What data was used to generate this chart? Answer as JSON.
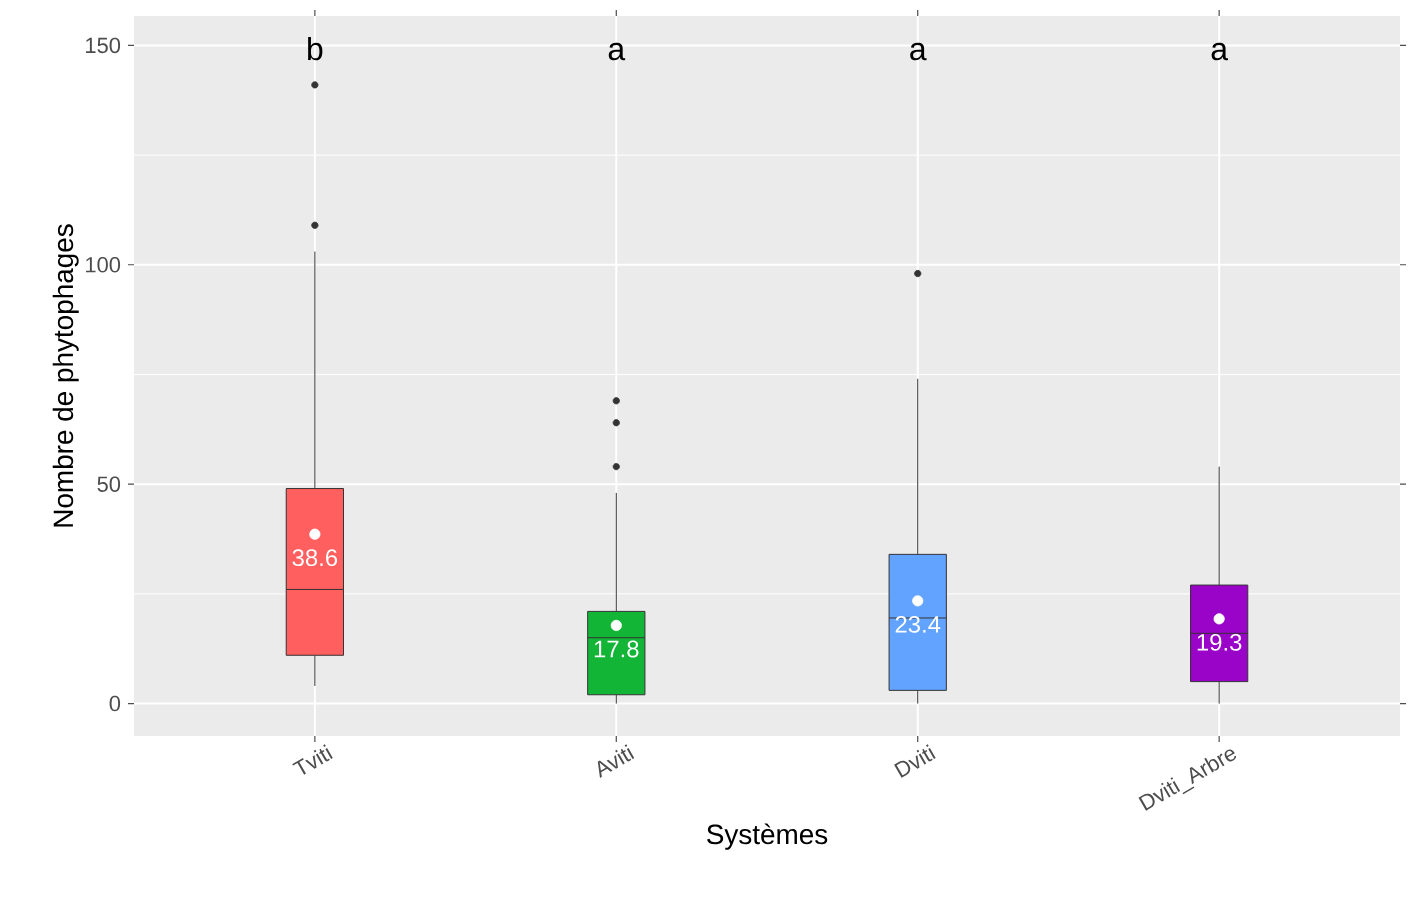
{
  "chart_data": {
    "type": "box",
    "xlabel": "Systèmes",
    "ylabel": "Nombre de phytophages",
    "categories": [
      "Tviti",
      "Aviti",
      "Dviti",
      "Dviti_Arbre"
    ],
    "colors": [
      "#ff5f5f",
      "#12b536",
      "#62a3ff",
      "#9a04c8"
    ],
    "boxes": [
      {
        "low": 4,
        "q1": 11,
        "median": 26,
        "q3": 49,
        "high": 103,
        "mean": 38.6,
        "outliers": [
          109,
          141
        ]
      },
      {
        "low": 0,
        "q1": 2,
        "median": 15,
        "q3": 21,
        "high": 48,
        "mean": 17.8,
        "outliers": [
          54,
          64,
          69
        ]
      },
      {
        "low": 0,
        "q1": 3,
        "median": 19.5,
        "q3": 34,
        "high": 74,
        "mean": 23.4,
        "outliers": [
          98
        ]
      },
      {
        "low": 0,
        "q1": 5,
        "median": 16,
        "q3": 27,
        "high": 54,
        "mean": 19.3
      }
    ],
    "ylim": [
      -7.4,
      156.7
    ],
    "yticks": [
      0,
      50,
      100,
      150
    ],
    "grid": true,
    "annotations": [
      "b",
      "a",
      "a",
      "a",
      "38.6",
      "17.8",
      "23.4",
      "19.3"
    ]
  }
}
